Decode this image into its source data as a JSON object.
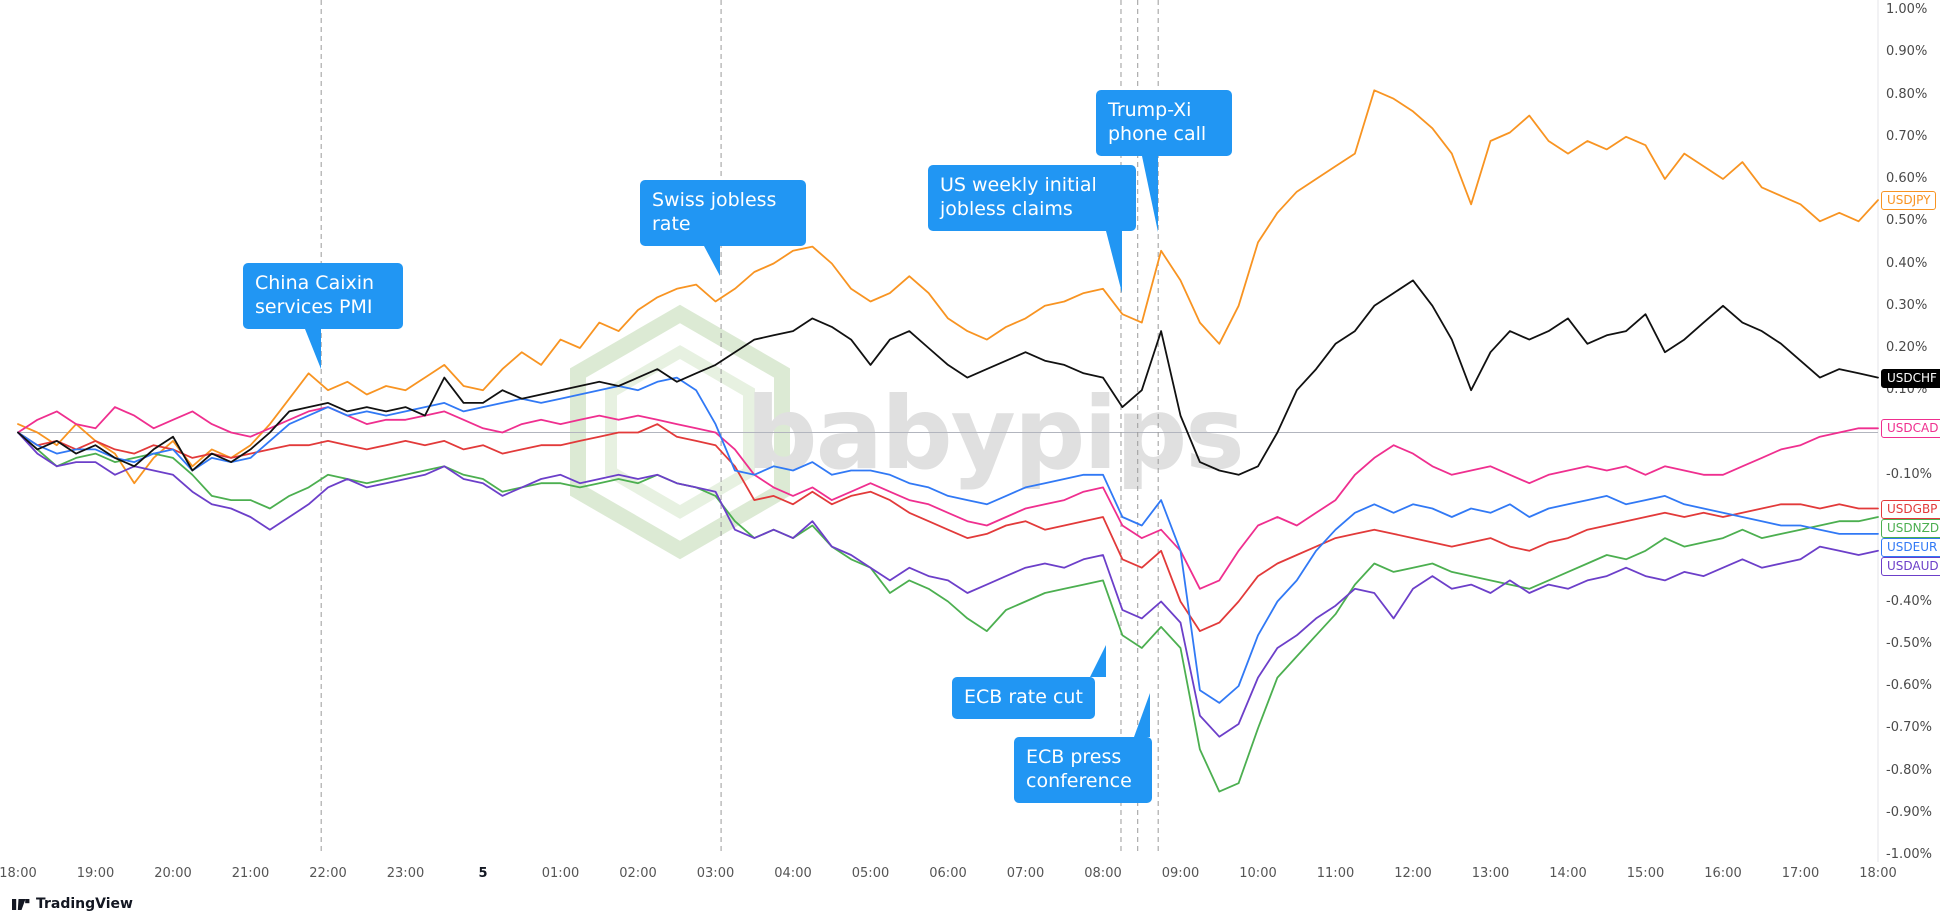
{
  "chart_data": {
    "type": "line",
    "title": "",
    "y_unit": "%",
    "ylim": [
      -1.0,
      1.0
    ],
    "grid": "zero-line-only",
    "legend_position": "right-edge-price-labels",
    "x_interval_minutes": 15,
    "x_labels": [
      "18:00",
      "19:00",
      "20:00",
      "21:00",
      "22:00",
      "23:00",
      "5",
      "01:00",
      "02:00",
      "03:00",
      "04:00",
      "05:00",
      "06:00",
      "07:00",
      "08:00",
      "09:00",
      "10:00",
      "11:00",
      "12:00",
      "13:00",
      "14:00",
      "15:00",
      "16:00",
      "17:00",
      "18:00"
    ],
    "y_ticks": [
      "1.00%",
      "0.90%",
      "0.80%",
      "0.70%",
      "0.60%",
      "0.50%",
      "0.40%",
      "0.30%",
      "0.20%",
      "0.10%",
      "0.00%",
      "-0.10%",
      "-0.20%",
      "-0.30%",
      "-0.40%",
      "-0.50%",
      "-0.60%",
      "-0.70%",
      "-0.80%",
      "-0.90%",
      "-1.00%"
    ],
    "event_lines": [
      {
        "x_frac": 0.163
      },
      {
        "x_frac": 0.378
      },
      {
        "x_frac": 0.593
      },
      {
        "x_frac": 0.602
      },
      {
        "x_frac": 0.613
      }
    ],
    "series": [
      {
        "name": "USDJPY",
        "color": "#f89422",
        "label_style": "outline",
        "values": [
          0.02,
          0.0,
          -0.03,
          0.02,
          -0.02,
          -0.05,
          -0.12,
          -0.06,
          -0.02,
          -0.08,
          -0.04,
          -0.06,
          -0.03,
          0.02,
          0.08,
          0.14,
          0.1,
          0.12,
          0.09,
          0.11,
          0.1,
          0.13,
          0.16,
          0.11,
          0.1,
          0.15,
          0.19,
          0.16,
          0.22,
          0.2,
          0.26,
          0.24,
          0.29,
          0.32,
          0.34,
          0.35,
          0.31,
          0.34,
          0.38,
          0.4,
          0.43,
          0.44,
          0.4,
          0.34,
          0.31,
          0.33,
          0.37,
          0.33,
          0.27,
          0.24,
          0.22,
          0.25,
          0.27,
          0.3,
          0.31,
          0.33,
          0.34,
          0.28,
          0.26,
          0.43,
          0.36,
          0.26,
          0.21,
          0.3,
          0.45,
          0.52,
          0.57,
          0.6,
          0.63,
          0.66,
          0.81,
          0.79,
          0.76,
          0.72,
          0.66,
          0.54,
          0.69,
          0.71,
          0.75,
          0.69,
          0.66,
          0.69,
          0.67,
          0.7,
          0.68,
          0.6,
          0.66,
          0.63,
          0.6,
          0.64,
          0.58,
          0.56,
          0.54,
          0.5,
          0.52,
          0.5,
          0.55
        ]
      },
      {
        "name": "USDCHF",
        "color": "#111111",
        "label_style": "solid",
        "values": [
          0.0,
          -0.04,
          -0.02,
          -0.05,
          -0.03,
          -0.06,
          -0.08,
          -0.04,
          -0.01,
          -0.09,
          -0.05,
          -0.07,
          -0.04,
          0.0,
          0.05,
          0.06,
          0.07,
          0.05,
          0.06,
          0.05,
          0.06,
          0.04,
          0.13,
          0.07,
          0.07,
          0.1,
          0.08,
          0.09,
          0.1,
          0.11,
          0.12,
          0.11,
          0.13,
          0.15,
          0.12,
          0.14,
          0.16,
          0.19,
          0.22,
          0.23,
          0.24,
          0.27,
          0.25,
          0.22,
          0.16,
          0.22,
          0.24,
          0.2,
          0.16,
          0.13,
          0.15,
          0.17,
          0.19,
          0.17,
          0.16,
          0.14,
          0.13,
          0.06,
          0.1,
          0.24,
          0.04,
          -0.07,
          -0.09,
          -0.1,
          -0.08,
          0.0,
          0.1,
          0.15,
          0.21,
          0.24,
          0.3,
          0.33,
          0.36,
          0.3,
          0.22,
          0.1,
          0.19,
          0.24,
          0.22,
          0.24,
          0.27,
          0.21,
          0.23,
          0.24,
          0.28,
          0.19,
          0.22,
          0.26,
          0.3,
          0.26,
          0.24,
          0.21,
          0.17,
          0.13,
          0.15,
          0.14,
          0.13
        ]
      },
      {
        "name": "USDCAD",
        "color": "#ef2f8f",
        "label_style": "outline",
        "values": [
          0.0,
          0.03,
          0.05,
          0.02,
          0.01,
          0.06,
          0.04,
          0.01,
          0.03,
          0.05,
          0.02,
          0.0,
          -0.01,
          0.01,
          0.03,
          0.05,
          0.06,
          0.04,
          0.02,
          0.03,
          0.03,
          0.04,
          0.05,
          0.03,
          0.01,
          0.0,
          0.02,
          0.03,
          0.02,
          0.03,
          0.04,
          0.03,
          0.04,
          0.03,
          0.02,
          0.01,
          0.0,
          -0.04,
          -0.1,
          -0.13,
          -0.15,
          -0.13,
          -0.16,
          -0.14,
          -0.12,
          -0.14,
          -0.16,
          -0.17,
          -0.19,
          -0.21,
          -0.22,
          -0.2,
          -0.18,
          -0.17,
          -0.16,
          -0.14,
          -0.13,
          -0.22,
          -0.25,
          -0.23,
          -0.28,
          -0.37,
          -0.35,
          -0.28,
          -0.22,
          -0.2,
          -0.22,
          -0.19,
          -0.16,
          -0.1,
          -0.06,
          -0.03,
          -0.05,
          -0.08,
          -0.1,
          -0.09,
          -0.08,
          -0.1,
          -0.12,
          -0.1,
          -0.09,
          -0.08,
          -0.09,
          -0.08,
          -0.1,
          -0.08,
          -0.09,
          -0.1,
          -0.1,
          -0.08,
          -0.06,
          -0.04,
          -0.03,
          -0.01,
          0.0,
          0.01,
          0.01
        ]
      },
      {
        "name": "USDGBP",
        "color": "#e23a3a",
        "label_style": "outline",
        "values": [
          0.0,
          -0.03,
          -0.02,
          -0.04,
          -0.02,
          -0.04,
          -0.05,
          -0.03,
          -0.04,
          -0.06,
          -0.05,
          -0.06,
          -0.05,
          -0.04,
          -0.03,
          -0.03,
          -0.02,
          -0.03,
          -0.04,
          -0.03,
          -0.02,
          -0.03,
          -0.02,
          -0.04,
          -0.03,
          -0.05,
          -0.04,
          -0.03,
          -0.03,
          -0.02,
          -0.01,
          0.0,
          0.0,
          0.02,
          -0.01,
          -0.02,
          -0.03,
          -0.08,
          -0.16,
          -0.15,
          -0.17,
          -0.14,
          -0.17,
          -0.15,
          -0.14,
          -0.16,
          -0.19,
          -0.21,
          -0.23,
          -0.25,
          -0.24,
          -0.22,
          -0.21,
          -0.23,
          -0.22,
          -0.21,
          -0.2,
          -0.3,
          -0.32,
          -0.28,
          -0.4,
          -0.47,
          -0.45,
          -0.4,
          -0.34,
          -0.31,
          -0.29,
          -0.27,
          -0.25,
          -0.24,
          -0.23,
          -0.24,
          -0.25,
          -0.26,
          -0.27,
          -0.26,
          -0.25,
          -0.27,
          -0.28,
          -0.26,
          -0.25,
          -0.23,
          -0.22,
          -0.21,
          -0.2,
          -0.19,
          -0.2,
          -0.19,
          -0.2,
          -0.19,
          -0.18,
          -0.17,
          -0.17,
          -0.18,
          -0.17,
          -0.18,
          -0.18
        ]
      },
      {
        "name": "USDNZD",
        "color": "#4caf50",
        "label_style": "outline",
        "values": [
          0.0,
          -0.04,
          -0.08,
          -0.06,
          -0.05,
          -0.07,
          -0.06,
          -0.05,
          -0.06,
          -0.1,
          -0.15,
          -0.16,
          -0.16,
          -0.18,
          -0.15,
          -0.13,
          -0.1,
          -0.11,
          -0.12,
          -0.11,
          -0.1,
          -0.09,
          -0.08,
          -0.1,
          -0.11,
          -0.14,
          -0.13,
          -0.12,
          -0.12,
          -0.13,
          -0.12,
          -0.11,
          -0.12,
          -0.1,
          -0.12,
          -0.13,
          -0.15,
          -0.21,
          -0.25,
          -0.23,
          -0.25,
          -0.22,
          -0.27,
          -0.3,
          -0.32,
          -0.38,
          -0.35,
          -0.37,
          -0.4,
          -0.44,
          -0.47,
          -0.42,
          -0.4,
          -0.38,
          -0.37,
          -0.36,
          -0.35,
          -0.48,
          -0.51,
          -0.46,
          -0.51,
          -0.75,
          -0.85,
          -0.83,
          -0.7,
          -0.58,
          -0.53,
          -0.48,
          -0.43,
          -0.36,
          -0.31,
          -0.33,
          -0.32,
          -0.31,
          -0.33,
          -0.34,
          -0.35,
          -0.36,
          -0.37,
          -0.35,
          -0.33,
          -0.31,
          -0.29,
          -0.3,
          -0.28,
          -0.25,
          -0.27,
          -0.26,
          -0.25,
          -0.23,
          -0.25,
          -0.24,
          -0.23,
          -0.22,
          -0.21,
          -0.21,
          -0.2
        ]
      },
      {
        "name": "USDEUR",
        "color": "#3179f5",
        "label_style": "outline",
        "values": [
          0.0,
          -0.03,
          -0.05,
          -0.04,
          -0.04,
          -0.06,
          -0.07,
          -0.05,
          -0.04,
          -0.09,
          -0.06,
          -0.07,
          -0.06,
          -0.02,
          0.02,
          0.04,
          0.06,
          0.04,
          0.05,
          0.04,
          0.05,
          0.06,
          0.07,
          0.05,
          0.06,
          0.07,
          0.08,
          0.07,
          0.08,
          0.09,
          0.1,
          0.11,
          0.1,
          0.12,
          0.13,
          0.1,
          0.02,
          -0.09,
          -0.1,
          -0.08,
          -0.09,
          -0.07,
          -0.1,
          -0.09,
          -0.09,
          -0.1,
          -0.12,
          -0.13,
          -0.15,
          -0.16,
          -0.17,
          -0.15,
          -0.13,
          -0.12,
          -0.11,
          -0.1,
          -0.1,
          -0.2,
          -0.22,
          -0.16,
          -0.28,
          -0.61,
          -0.64,
          -0.6,
          -0.48,
          -0.4,
          -0.35,
          -0.28,
          -0.23,
          -0.19,
          -0.17,
          -0.19,
          -0.17,
          -0.18,
          -0.2,
          -0.18,
          -0.19,
          -0.17,
          -0.2,
          -0.18,
          -0.17,
          -0.16,
          -0.15,
          -0.17,
          -0.16,
          -0.15,
          -0.17,
          -0.18,
          -0.19,
          -0.2,
          -0.21,
          -0.22,
          -0.22,
          -0.23,
          -0.24,
          -0.24,
          -0.24
        ]
      },
      {
        "name": "USDAUD",
        "color": "#6c3fc9",
        "label_style": "outline",
        "values": [
          0.0,
          -0.05,
          -0.08,
          -0.07,
          -0.07,
          -0.1,
          -0.08,
          -0.09,
          -0.1,
          -0.14,
          -0.17,
          -0.18,
          -0.2,
          -0.23,
          -0.2,
          -0.17,
          -0.13,
          -0.11,
          -0.13,
          -0.12,
          -0.11,
          -0.1,
          -0.08,
          -0.11,
          -0.12,
          -0.15,
          -0.13,
          -0.11,
          -0.1,
          -0.12,
          -0.11,
          -0.1,
          -0.11,
          -0.1,
          -0.12,
          -0.13,
          -0.14,
          -0.23,
          -0.25,
          -0.23,
          -0.25,
          -0.21,
          -0.27,
          -0.29,
          -0.32,
          -0.35,
          -0.32,
          -0.34,
          -0.35,
          -0.38,
          -0.36,
          -0.34,
          -0.32,
          -0.31,
          -0.32,
          -0.3,
          -0.29,
          -0.42,
          -0.44,
          -0.4,
          -0.45,
          -0.67,
          -0.72,
          -0.69,
          -0.58,
          -0.51,
          -0.48,
          -0.44,
          -0.41,
          -0.37,
          -0.38,
          -0.44,
          -0.37,
          -0.34,
          -0.37,
          -0.36,
          -0.38,
          -0.35,
          -0.38,
          -0.36,
          -0.37,
          -0.35,
          -0.34,
          -0.32,
          -0.34,
          -0.35,
          -0.33,
          -0.34,
          -0.32,
          -0.3,
          -0.32,
          -0.31,
          -0.3,
          -0.27,
          -0.28,
          -0.29,
          -0.28
        ]
      }
    ]
  },
  "events": [
    {
      "label": "China Caixin services PMI"
    },
    {
      "label": "Swiss jobless rate"
    },
    {
      "label": "US weekly initial jobless claims"
    },
    {
      "label": "Trump-Xi phone call"
    },
    {
      "label": "ECB rate cut"
    },
    {
      "label": "ECB press conference"
    }
  ],
  "watermark": {
    "text": "babypips"
  },
  "attribution": {
    "label": "TradingView"
  },
  "colors": {
    "background": "#ffffff",
    "callout_bg": "#2196f3",
    "callout_text": "#ffffff",
    "axis_text": "#4a4a4a",
    "zero_line": "#b2b5be",
    "event_line": "#9b9b9b",
    "watermark_text": "#e0e0e0",
    "watermark_hex": "#dcead4"
  }
}
